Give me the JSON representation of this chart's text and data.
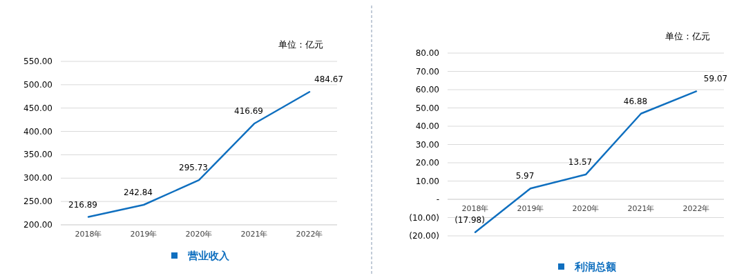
{
  "chart_data": [
    {
      "type": "line",
      "categories": [
        "2018年",
        "2019年",
        "2020年",
        "2021年",
        "2022年"
      ],
      "series": [
        {
          "name": "营业收入",
          "color": "#0f6fbf",
          "values": [
            216.89,
            242.84,
            295.73,
            416.69,
            484.67
          ]
        }
      ],
      "ylim": [
        200,
        550
      ],
      "yticks": [
        {
          "value": 200,
          "label": "200.00"
        },
        {
          "value": 250,
          "label": "250.00"
        },
        {
          "value": 300,
          "label": "300.00"
        },
        {
          "value": 350,
          "label": "350.00"
        },
        {
          "value": 400,
          "label": "400.00"
        },
        {
          "value": 450,
          "label": "450.00"
        },
        {
          "value": 500,
          "label": "500.00"
        },
        {
          "value": 550,
          "label": "550.00"
        }
      ],
      "grid": "y",
      "legend": "bottom",
      "data_labels": true,
      "annotations": [
        "单位：亿元"
      ]
    },
    {
      "type": "line",
      "categories": [
        "2018年",
        "2019年",
        "2020年",
        "2021年",
        "2022年"
      ],
      "series": [
        {
          "name": "利润总额",
          "color": "#0f6fbf",
          "values": [
            -17.98,
            5.97,
            13.57,
            46.88,
            59.07
          ],
          "value_labels": [
            "(17.98)",
            "5.97",
            "13.57",
            "46.88",
            "59.07"
          ]
        }
      ],
      "ylim": [
        -20,
        80
      ],
      "yticks": [
        {
          "value": -20,
          "label": "(20.00)"
        },
        {
          "value": -10,
          "label": "(10.00)"
        },
        {
          "value": 0,
          "label": "-"
        },
        {
          "value": 10,
          "label": "10.00"
        },
        {
          "value": 20,
          "label": "20.00"
        },
        {
          "value": 30,
          "label": "30.00"
        },
        {
          "value": 40,
          "label": "40.00"
        },
        {
          "value": 50,
          "label": "50.00"
        },
        {
          "value": 60,
          "label": "60.00"
        },
        {
          "value": 70,
          "label": "70.00"
        },
        {
          "value": 80,
          "label": "80.00"
        }
      ],
      "grid": "y",
      "legend": "bottom",
      "annotations": [
        "单位：亿元"
      ]
    }
  ]
}
